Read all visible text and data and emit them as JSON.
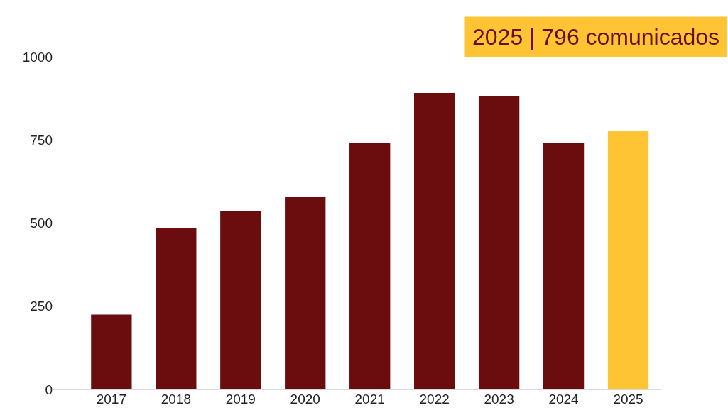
{
  "chart_data": {
    "type": "bar",
    "categories": [
      "2017",
      "2018",
      "2019",
      "2020",
      "2021",
      "2022",
      "2023",
      "2024",
      "2025"
    ],
    "values": [
      225,
      484,
      537,
      578,
      742,
      891,
      881,
      742,
      777
    ],
    "colors": [
      "#6b0d0e",
      "#6b0d0e",
      "#6b0d0e",
      "#6b0d0e",
      "#6b0d0e",
      "#6b0d0e",
      "#6b0d0e",
      "#6b0d0e",
      "#ffc433"
    ],
    "ylim": [
      0,
      1000
    ],
    "yticks": [
      0,
      250,
      500,
      750,
      1000
    ],
    "grid": "y",
    "annotations": [
      "2025 | 796 comunicados"
    ]
  }
}
